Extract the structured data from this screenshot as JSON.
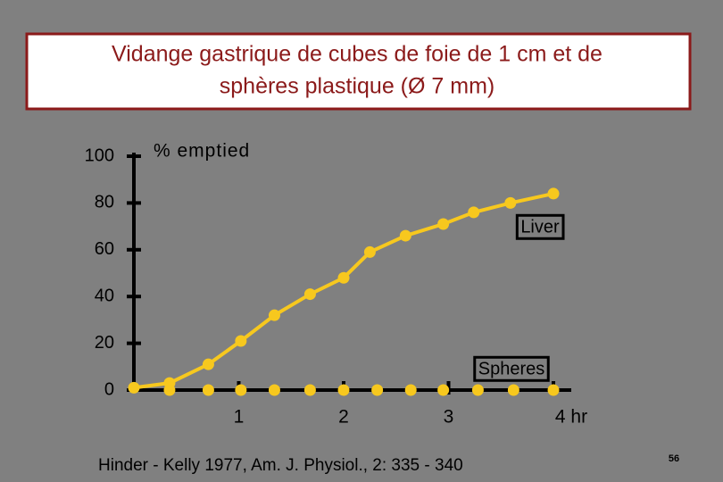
{
  "chart_data": {
    "type": "line",
    "title": [
      "Vidange gastrique de cubes de foie de  1 cm et de",
      "sphères plastique (Ø 7 mm)"
    ],
    "y_label": "% emptied",
    "footnote": "Hinder - Kelly 1977, Am. J. Physiol., 2: 335 - 340",
    "page_number": "56",
    "xlim": [
      0,
      4.17
    ],
    "ylim": [
      0,
      100
    ],
    "xticks": [
      1,
      2,
      3,
      {
        "value": 4,
        "label": "4 hr"
      }
    ],
    "yticks": [
      0,
      20,
      40,
      60,
      80,
      100
    ],
    "series": [
      {
        "name": "Liver",
        "color": "#f7c81e",
        "line": true,
        "x": [
          0,
          0.34,
          0.71,
          1.02,
          1.34,
          1.68,
          2.0,
          2.25,
          2.59,
          2.95,
          3.24,
          3.59,
          4.0
        ],
        "values": [
          1,
          3,
          11,
          21,
          32,
          41,
          48,
          59,
          66,
          71,
          76,
          80,
          84
        ]
      },
      {
        "name": "Spheres",
        "color": "#f7c81e",
        "line": false,
        "x": [
          0.34,
          0.71,
          1.02,
          1.34,
          1.68,
          2.0,
          2.32,
          2.64,
          2.95,
          3.28,
          3.62,
          4.0
        ],
        "values": [
          0,
          0,
          0,
          0,
          0,
          0,
          0,
          0,
          0,
          0,
          0,
          0
        ]
      }
    ]
  }
}
